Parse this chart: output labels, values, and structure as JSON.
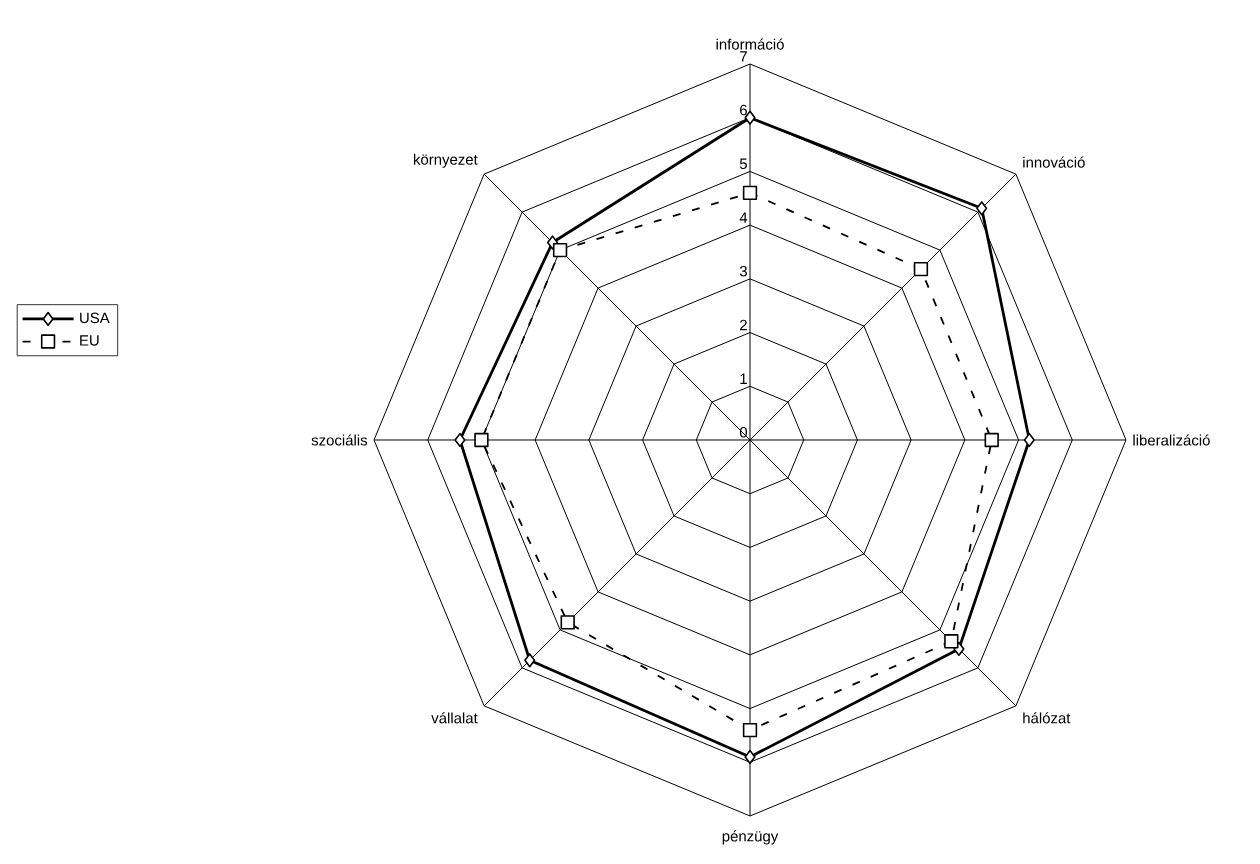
{
  "chart_data": {
    "type": "radar",
    "categories": [
      "információ",
      "innováció",
      "liberalizáció",
      "hálózat",
      "pénzügy",
      "vállalat",
      "szociális",
      "környezet"
    ],
    "series": [
      {
        "name": "USA",
        "color": "#000000",
        "marker": "diamond",
        "line_style": "solid",
        "values": [
          6.0,
          6.1,
          5.2,
          5.5,
          5.9,
          5.8,
          5.4,
          5.2
        ]
      },
      {
        "name": "EU",
        "color": "#000000",
        "marker": "square",
        "line_style": "dashed",
        "values": [
          4.6,
          4.5,
          4.5,
          5.3,
          5.4,
          4.8,
          5.0,
          5.0
        ]
      }
    ],
    "ylim": [
      0,
      7
    ],
    "yticks": [
      0,
      1,
      2,
      3,
      4,
      5,
      6,
      7
    ],
    "grid": true,
    "legend": "left"
  }
}
